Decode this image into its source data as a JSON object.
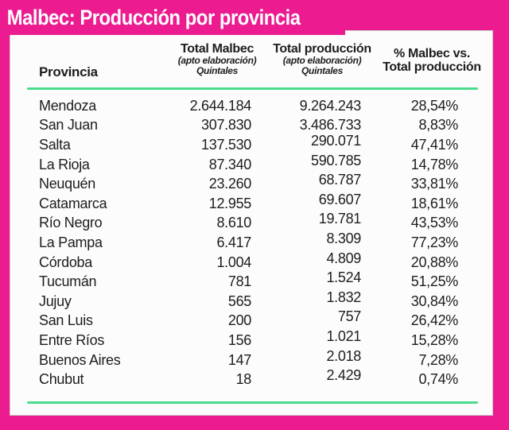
{
  "page_title": "Malbec: Producción por provincia",
  "colors": {
    "magenta": "#EC1C90",
    "green": "#4ADC8C",
    "text": "#1D1D1D",
    "panel": "#FCFCFC"
  },
  "header": {
    "provincia": "Provincia",
    "malbec": {
      "title": "Total Malbec",
      "sub1": "(apto elaboración)",
      "sub2": "Quintales"
    },
    "produccion": {
      "title": "Total producción",
      "sub1": "(apto elaboración)",
      "sub2": "Quintales"
    },
    "pct": {
      "line1": "% Malbec vs.",
      "line2": "Total producción"
    }
  },
  "chart_data": {
    "type": "table",
    "title": "Malbec: Producción por provincia",
    "columns": [
      "Provincia",
      "Total Malbec (apto elaboración) Quintales",
      "Total producción (apto elaboración) Quintales",
      "% Malbec vs. Total producción"
    ],
    "rows": [
      [
        "Mendoza",
        "2.644.184",
        "9.264.243",
        "28,54%"
      ],
      [
        "San Juan",
        "307.830",
        "3.486.733",
        "8,83%"
      ],
      [
        "Salta",
        "137.530",
        "290.071",
        "47,41%"
      ],
      [
        "La Rioja",
        "87.340",
        "590.785",
        "14,78%"
      ],
      [
        "Neuquén",
        "23.260",
        "68.787",
        "33,81%"
      ],
      [
        "Catamarca",
        "12.955",
        "69.607",
        "18,61%"
      ],
      [
        "Río Negro",
        "8.610",
        "19.781",
        "43,53%"
      ],
      [
        "La Pampa",
        "6.417",
        "8.309",
        "77,23%"
      ],
      [
        "Córdoba",
        "1.004",
        "4.809",
        "20,88%"
      ],
      [
        "Tucumán",
        "781",
        "1.524",
        "51,25%"
      ],
      [
        "Jujuy",
        "565",
        "1.832",
        "30,84%"
      ],
      [
        "San Luis",
        "200",
        "757",
        "26,42%"
      ],
      [
        "Entre Ríos",
        "156",
        "1.021",
        "15,28%"
      ],
      [
        "Buenos Aires",
        "147",
        "2.018",
        "7,28%"
      ],
      [
        "Chubut",
        "18",
        "2.429",
        "0,74%"
      ]
    ]
  }
}
